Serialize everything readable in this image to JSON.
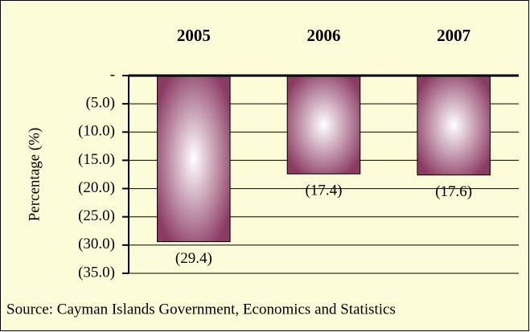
{
  "chart_data": {
    "type": "bar",
    "categories": [
      "2005",
      "2006",
      "2007"
    ],
    "values": [
      -29.4,
      -17.4,
      -17.6
    ],
    "value_labels": [
      "(29.4)",
      "(17.4)",
      "(17.6)"
    ],
    "color": "#8b3a62",
    "ylabel": "Percentage (%)",
    "ylim": [
      -35,
      0
    ],
    "yticks": [
      {
        "value": 0,
        "label": "-"
      },
      {
        "value": -5,
        "label": "(5.0)"
      },
      {
        "value": -10,
        "label": "(10.0)"
      },
      {
        "value": -15,
        "label": "(15.0)"
      },
      {
        "value": -20,
        "label": "(20.0)"
      },
      {
        "value": -25,
        "label": "(25.0)"
      },
      {
        "value": -30,
        "label": "(30.0)"
      },
      {
        "value": -35,
        "label": "(35.0)"
      }
    ],
    "grid": true,
    "source": "Source: Cayman Islands Government, Economics and Statistics"
  }
}
